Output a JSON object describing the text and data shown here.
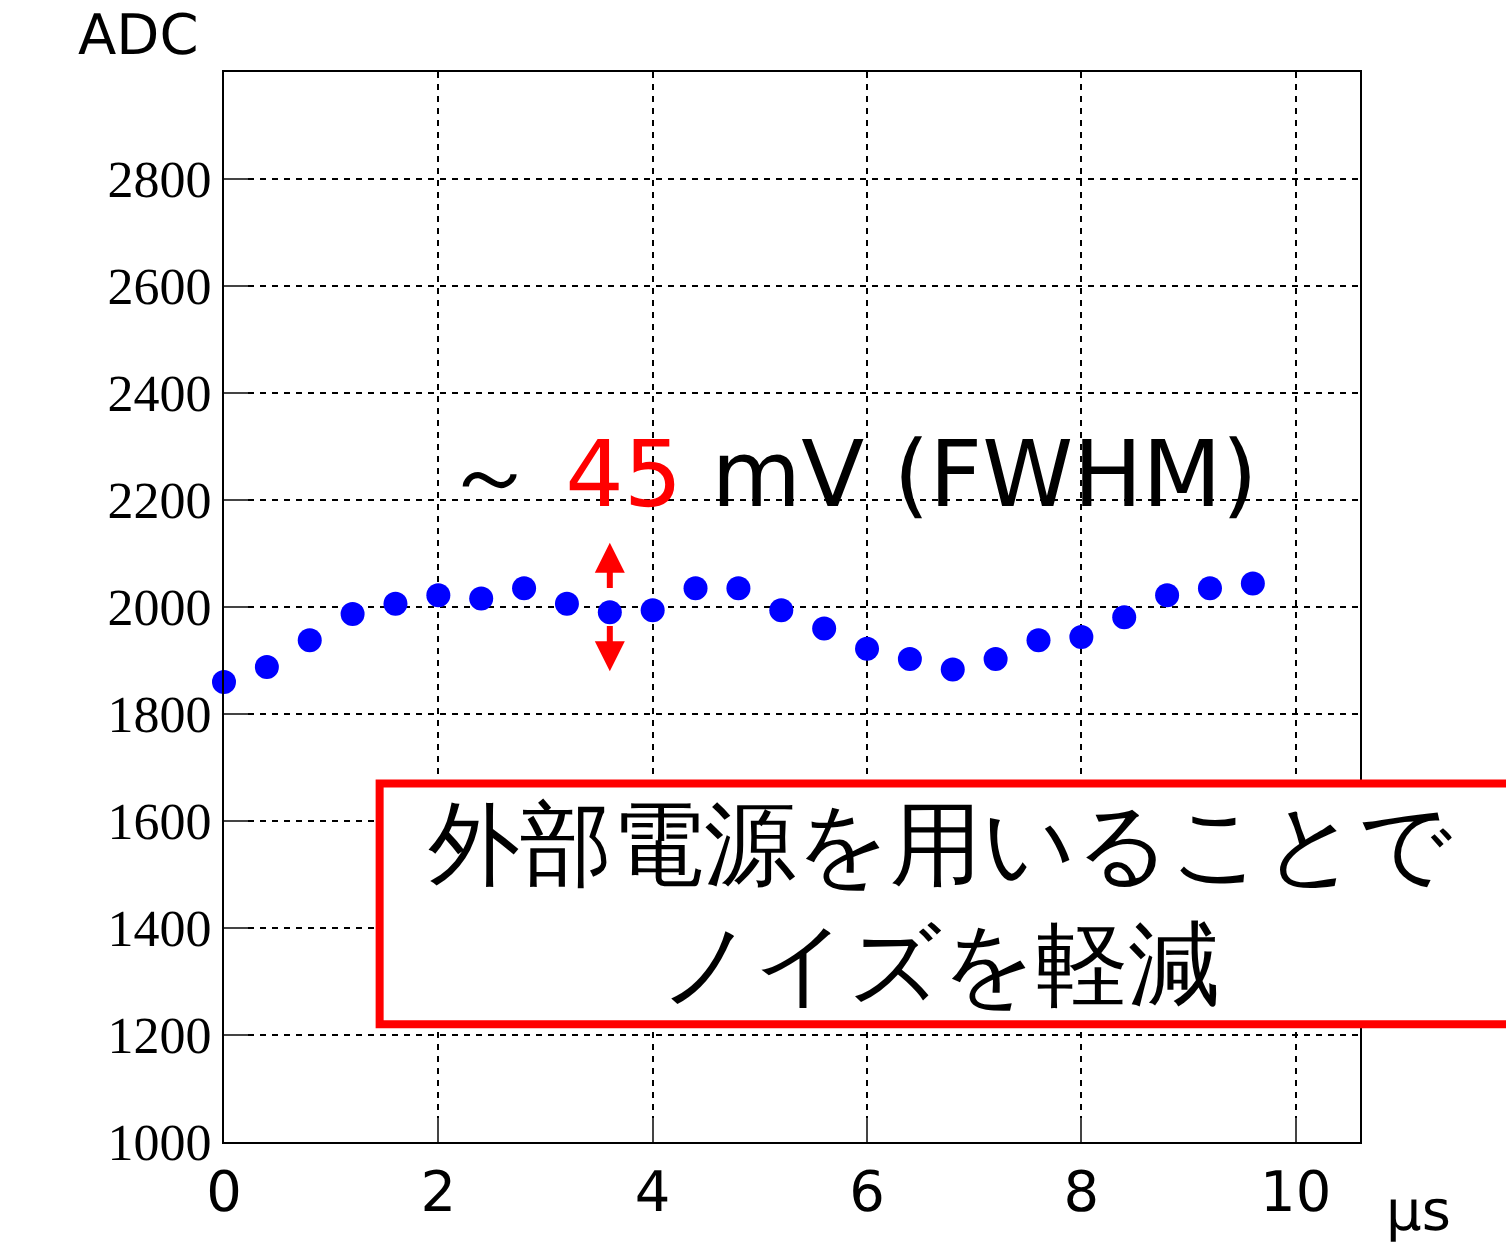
{
  "chart_data": {
    "type": "scatter",
    "xlabel": "µs",
    "ylabel": "ADC",
    "x": [
      0,
      0.4,
      0.8,
      1.2,
      1.6,
      2.0,
      2.4,
      2.8,
      3.2,
      3.6,
      4.0,
      4.4,
      4.8,
      5.2,
      5.6,
      6.0,
      6.4,
      6.8,
      7.2,
      7.6,
      8.0,
      8.4,
      8.8,
      9.2,
      9.6
    ],
    "series": [
      {
        "color": "#0000ff",
        "values": [
          1860,
          1888,
          1938,
          1987,
          2006,
          2022,
          2016,
          2035,
          2006,
          1990,
          1994,
          2035,
          2035,
          1994,
          1960,
          1922,
          1903,
          1883,
          1903,
          1938,
          1944,
          1981,
          2022,
          2035,
          2044
        ]
      }
    ],
    "xlim": [
      0,
      10.6
    ],
    "xticks": [
      0,
      2,
      4,
      6,
      8,
      10
    ],
    "ylim": [
      1000,
      3000
    ],
    "yticks": [
      1000,
      1200,
      1400,
      1600,
      1800,
      2000,
      2200,
      2400,
      2600,
      2800
    ],
    "grid": true,
    "marker": "circle",
    "legend": false,
    "annotations": [
      {
        "text": "～ 45 mV (FWHM)",
        "x": 3.6,
        "y": 2000
      },
      "外部電源を用いることで",
      "ノイズを軽減"
    ]
  }
}
